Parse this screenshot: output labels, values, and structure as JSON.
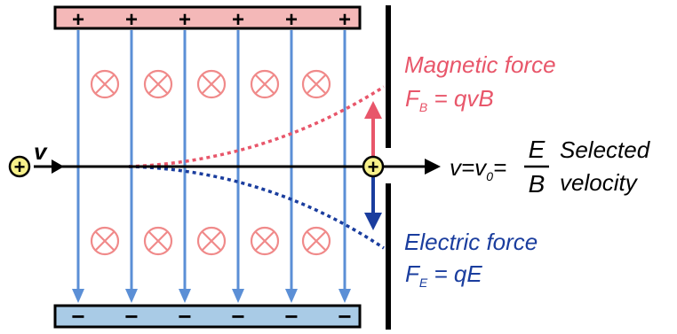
{
  "plates": {
    "top": {
      "sign": "+",
      "count": 6,
      "fill": "#f4b8b8"
    },
    "bottom": {
      "sign": "−",
      "count": 6,
      "fill": "#a9cbe6"
    }
  },
  "field_lines": {
    "count": 6,
    "color": "#5b8fd6"
  },
  "b_field": {
    "symbol": "⊗",
    "color": "#f08a8a",
    "rows": 2,
    "per_row": 5
  },
  "particle": {
    "sign": "+",
    "velocity_label": "v",
    "fill": "#f7f18a"
  },
  "magnetic": {
    "title": "Magnetic force",
    "formula_main": "F",
    "formula_sub": "B",
    "formula_rhs": " = qvB",
    "color": "#e8566a"
  },
  "electric": {
    "title": "Electric force",
    "formula_main": "F",
    "formula_sub": "E",
    "formula_rhs": " = qE",
    "color": "#1a3d9e"
  },
  "selection": {
    "lhs_main": "v=v",
    "lhs_sub": "0",
    "equals": "=",
    "numerator": "E",
    "denominator": "B",
    "line1": "Selected",
    "line2": "velocity"
  }
}
